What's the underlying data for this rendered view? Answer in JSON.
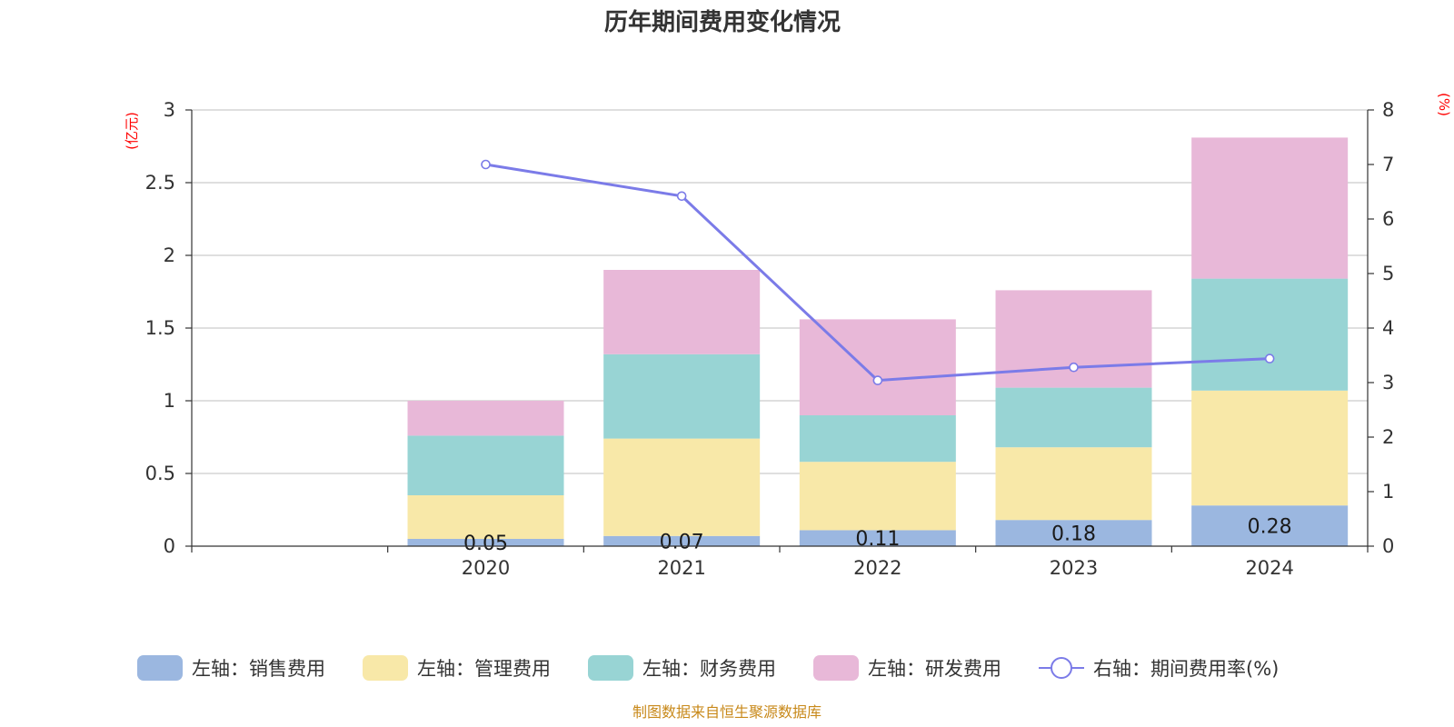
{
  "chart_data": {
    "type": "bar",
    "stacked": true,
    "title": "历年期间费用变化情况",
    "source": "制图数据来自恒生聚源数据库",
    "categories": [
      "",
      "2020",
      "2021",
      "2022",
      "2023",
      "2024"
    ],
    "left_axis": {
      "unit": "(亿元)",
      "min": 0,
      "max": 3,
      "ticks": [
        "0",
        "0.5",
        "1",
        "1.5",
        "2",
        "2.5",
        "3"
      ]
    },
    "right_axis": {
      "unit": "(%)",
      "min": 0,
      "max": 8,
      "ticks": [
        "0",
        "1",
        "2",
        "3",
        "4",
        "5",
        "6",
        "7",
        "8"
      ]
    },
    "series": [
      {
        "name": "左轴：销售费用",
        "color": "#9bb7e0",
        "axis": "left",
        "values": [
          null,
          0.05,
          0.07,
          0.11,
          0.18,
          0.28
        ],
        "labels": [
          "",
          "0.05",
          "0.07",
          "0.11",
          "0.18",
          "0.28"
        ]
      },
      {
        "name": "左轴：管理费用",
        "color": "#f8e8a8",
        "axis": "left",
        "values": [
          null,
          0.3,
          0.67,
          0.47,
          0.5,
          0.79
        ]
      },
      {
        "name": "左轴：财务费用",
        "color": "#98d4d4",
        "axis": "left",
        "values": [
          null,
          0.41,
          0.58,
          0.32,
          0.41,
          0.77
        ]
      },
      {
        "name": "左轴：研发费用",
        "color": "#e8b8d8",
        "axis": "left",
        "values": [
          null,
          0.24,
          0.58,
          0.66,
          0.67,
          0.97
        ]
      },
      {
        "name": "右轴：期间费用率(%)",
        "color": "#7b7be8",
        "axis": "right",
        "type": "line",
        "values": [
          null,
          7.0,
          6.42,
          3.04,
          3.28,
          3.44
        ]
      }
    ],
    "grid": true,
    "legend_position": "bottom"
  }
}
